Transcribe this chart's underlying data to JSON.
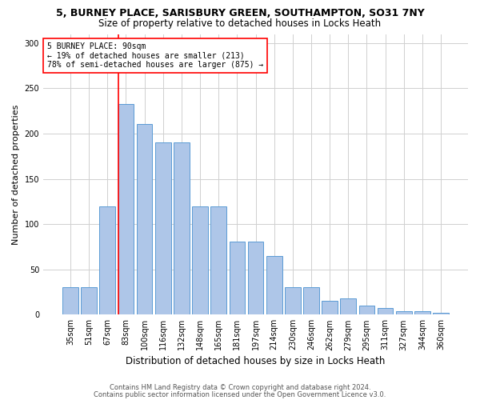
{
  "title": "5, BURNEY PLACE, SARISBURY GREEN, SOUTHAMPTON, SO31 7NY",
  "subtitle": "Size of property relative to detached houses in Locks Heath",
  "xlabel": "Distribution of detached houses by size in Locks Heath",
  "ylabel": "Number of detached properties",
  "footer1": "Contains HM Land Registry data © Crown copyright and database right 2024.",
  "footer2": "Contains public sector information licensed under the Open Government Licence v3.0.",
  "categories": [
    "35sqm",
    "51sqm",
    "67sqm",
    "83sqm",
    "100sqm",
    "116sqm",
    "132sqm",
    "148sqm",
    "165sqm",
    "181sqm",
    "197sqm",
    "214sqm",
    "230sqm",
    "246sqm",
    "262sqm",
    "279sqm",
    "295sqm",
    "311sqm",
    "327sqm",
    "344sqm",
    "360sqm"
  ],
  "values": [
    30,
    30,
    120,
    233,
    211,
    190,
    190,
    120,
    120,
    81,
    81,
    65,
    30,
    30,
    15,
    18,
    10,
    7,
    4,
    4,
    2
  ],
  "bar_color": "#aec6e8",
  "bar_edge_color": "#5b9bd5",
  "annotation_text": "5 BURNEY PLACE: 90sqm\n← 19% of detached houses are smaller (213)\n78% of semi-detached houses are larger (875) →",
  "red_line_x": 3.5,
  "ylim": [
    0,
    310
  ],
  "background_color": "#ffffff",
  "grid_color": "#d0d0d0",
  "title_fontsize": 9,
  "subtitle_fontsize": 8.5,
  "ylabel_fontsize": 8,
  "xlabel_fontsize": 8.5,
  "tick_fontsize": 7,
  "annot_fontsize": 7,
  "footer_fontsize": 6
}
